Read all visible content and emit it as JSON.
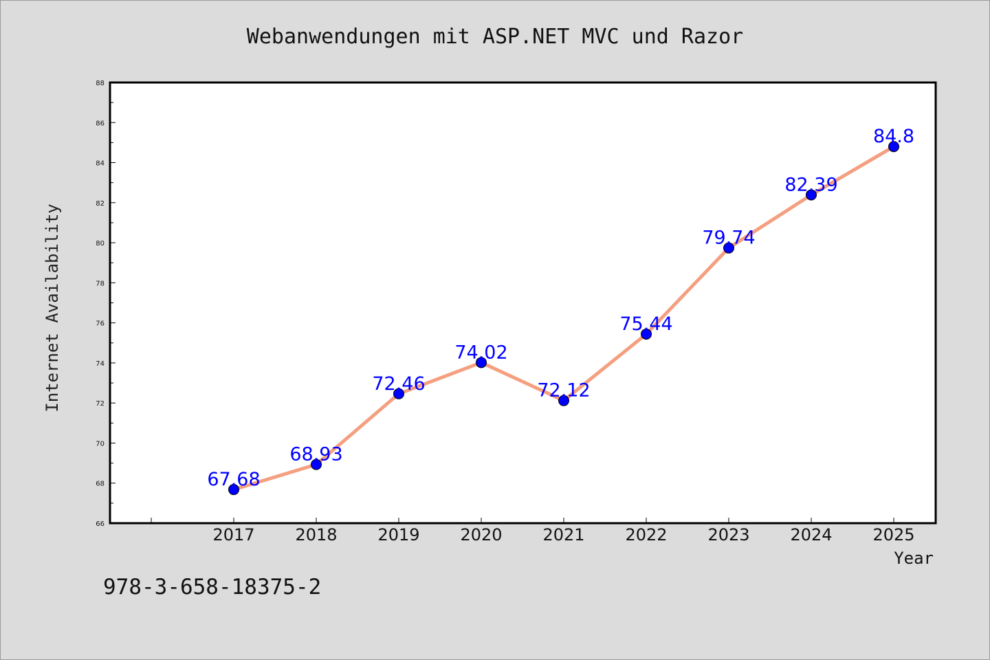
{
  "colors": {
    "background": "#dcdcdc",
    "plot_background": "#ffffff",
    "line": "#f4a080",
    "marker": "#0000ff",
    "data_label": "#0000ff"
  },
  "footer": {
    "isbn": "978-3-658-18375-2"
  },
  "chart_data": {
    "type": "line",
    "title": "Webanwendungen mit ASP.NET MVC und Razor",
    "xlabel": "Year",
    "ylabel": "Internet Availability",
    "categories": [
      "2017",
      "2018",
      "2019",
      "2020",
      "2021",
      "2022",
      "2023",
      "2024",
      "2025"
    ],
    "series": [
      {
        "values": [
          67.68,
          68.93,
          72.46,
          74.02,
          72.12,
          75.44,
          79.74,
          82.39,
          84.8
        ]
      }
    ],
    "data_labels": [
      "67.68",
      "68.93",
      "72.46",
      "74.02",
      "72.12",
      "75.44",
      "79.74",
      "82.39",
      "84.8"
    ],
    "ylim": [
      66,
      88
    ],
    "yticks": [
      "66",
      "68",
      "70",
      "72",
      "74",
      "76",
      "78",
      "80",
      "82",
      "84",
      "86",
      "88"
    ],
    "grid": false,
    "legend": "none"
  }
}
